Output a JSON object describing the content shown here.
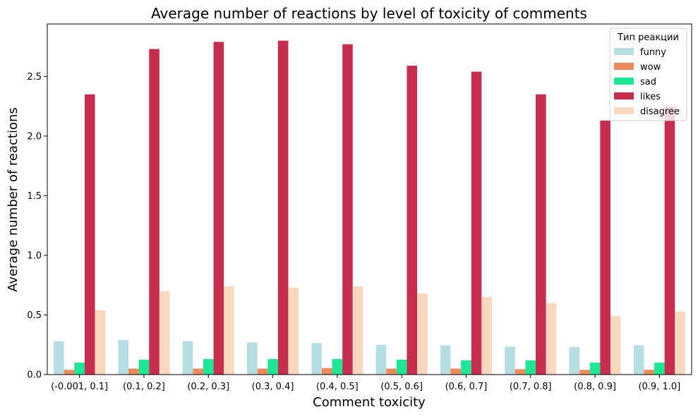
{
  "chart_data": {
    "type": "bar",
    "title": "Average number of reactions by level of toxicity of comments",
    "xlabel": "Comment toxicity",
    "ylabel": "Average number of reactions",
    "categories": [
      "(-0.001, 0.1]",
      "(0.1, 0.2]",
      "(0.2, 0.3]",
      "(0.3, 0.4]",
      "(0.4, 0.5]",
      "(0.5, 0.6]",
      "(0.6, 0.7]",
      "(0.7, 0.8]",
      "(0.8, 0.9]",
      "(0.9, 1.0]"
    ],
    "ylim": [
      0,
      2.94
    ],
    "yticks": [
      0.0,
      0.5,
      1.0,
      1.5,
      2.0,
      2.5
    ],
    "ytick_labels": [
      "0.0",
      "0.5",
      "1.0",
      "1.5",
      "2.0",
      "2.5"
    ],
    "grid": false,
    "legend": {
      "title": "Тип реакции",
      "placement": "top-right"
    },
    "series": [
      {
        "name": "funny",
        "color": "#b6dde1",
        "values": [
          0.28,
          0.29,
          0.28,
          0.27,
          0.265,
          0.25,
          0.245,
          0.235,
          0.23,
          0.245
        ]
      },
      {
        "name": "wow",
        "color": "#ef8a5c",
        "values": [
          0.04,
          0.05,
          0.05,
          0.05,
          0.055,
          0.05,
          0.05,
          0.045,
          0.04,
          0.04
        ]
      },
      {
        "name": "sad",
        "color": "#1fe597",
        "values": [
          0.1,
          0.125,
          0.13,
          0.13,
          0.13,
          0.125,
          0.12,
          0.12,
          0.1,
          0.1
        ]
      },
      {
        "name": "likes",
        "color": "#c72d4f",
        "values": [
          2.35,
          2.73,
          2.79,
          2.8,
          2.77,
          2.59,
          2.54,
          2.35,
          2.13,
          2.25
        ]
      },
      {
        "name": "disagree",
        "color": "#fad8bd",
        "values": [
          0.54,
          0.7,
          0.74,
          0.73,
          0.74,
          0.68,
          0.65,
          0.6,
          0.49,
          0.53
        ]
      }
    ]
  }
}
